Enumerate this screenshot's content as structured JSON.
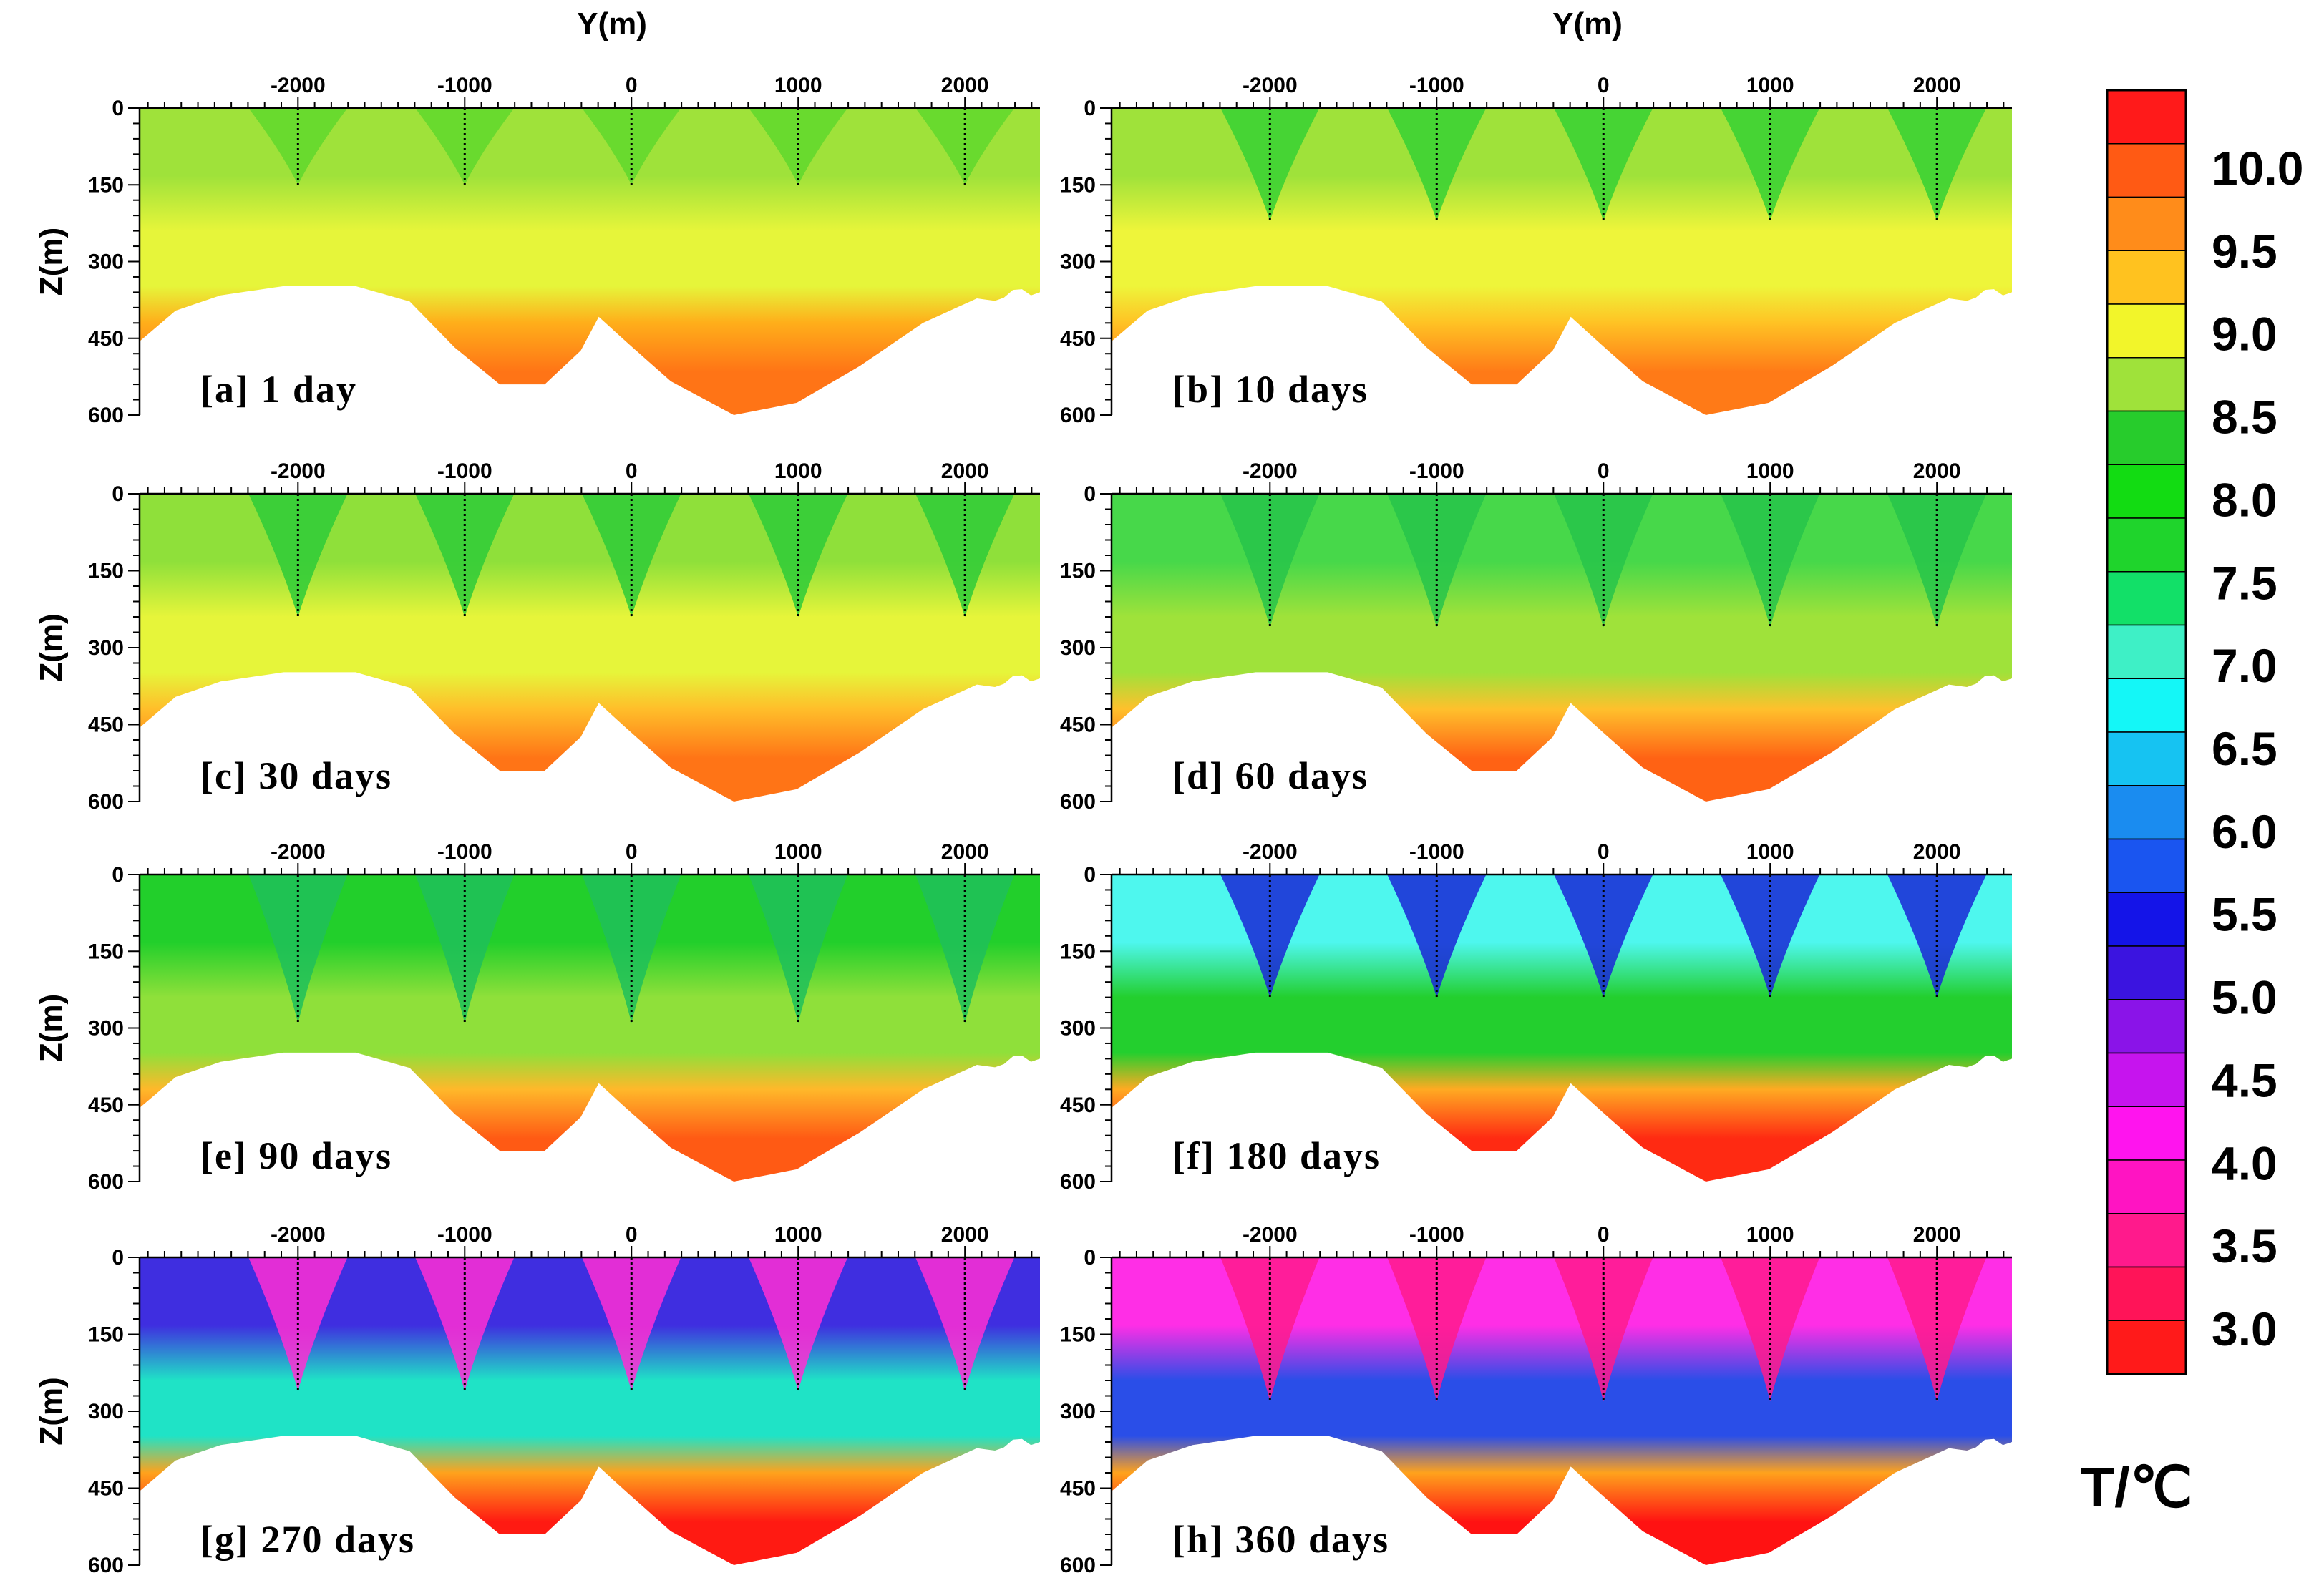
{
  "chart_data": {
    "type": "heatmap",
    "axes": {
      "x_title": "Y(m)",
      "y_title": "Z(m)"
    },
    "x_ticks": [
      "-2000",
      "-1000",
      "0",
      "1000",
      "2000"
    ],
    "x_tick_values": [
      -2000,
      -1000,
      0,
      1000,
      2000
    ],
    "y_ticks": [
      "0",
      "150",
      "300",
      "450",
      "600"
    ],
    "y_tick_values": [
      0,
      150,
      300,
      450,
      600
    ],
    "xlim": [
      -2950,
      2450
    ],
    "ylim": [
      0,
      600
    ],
    "wells_at_y": [
      -2000,
      -1000,
      0,
      1000,
      2000
    ],
    "panels": [
      {
        "label": "[a] 1 day",
        "surface": "#9fe23a",
        "upper": "#e6f53a",
        "deep": "#ffae1a",
        "bottom": "#ff7416",
        "well": "#5fd82d",
        "well_depth": 150
      },
      {
        "label": "[b] 10 days",
        "surface": "#9fe23a",
        "upper": "#eef53a",
        "deep": "#ffc224",
        "bottom": "#ff7a17",
        "well": "#36d134",
        "well_depth": 220
      },
      {
        "label": "[c] 30 days",
        "surface": "#8fe03a",
        "upper": "#e6f53a",
        "deep": "#ffbe2a",
        "bottom": "#ff7416",
        "well": "#2ecb38",
        "well_depth": 240
      },
      {
        "label": "[d] 60 days",
        "surface": "#47d84a",
        "upper": "#9fe23a",
        "deep": "#ffc02c",
        "bottom": "#ff6214",
        "well": "#27c44a",
        "well_depth": 260
      },
      {
        "label": "[e] 90 days",
        "surface": "#22cf2b",
        "upper": "#8fe03a",
        "deep": "#ffb82a",
        "bottom": "#ff5a14",
        "well": "#1fbf5a",
        "well_depth": 290
      },
      {
        "label": "[f] 180 days",
        "surface": "#4ef7ee",
        "upper": "#23cf2e",
        "deep": "#ffaa22",
        "bottom": "#ff2a12",
        "well": "#1a27d6",
        "well_depth": 240
      },
      {
        "label": "[g] 270 days",
        "surface": "#3f2ee0",
        "upper": "#1fe3c6",
        "deep": "#ffa21c",
        "bottom": "#ff1a12",
        "well": "#ff2ed4",
        "well_depth": 260
      },
      {
        "label": "[h] 360 days",
        "surface": "#ff2ee6",
        "upper": "#2a4ee8",
        "deep": "#ffa21c",
        "bottom": "#ff1212",
        "well": "#ff1a8c",
        "well_depth": 280
      }
    ],
    "colorbar": {
      "title": "T/℃",
      "labels": [
        "10.0",
        "9.5",
        "9.0",
        "8.5",
        "8.0",
        "7.5",
        "7.0",
        "6.5",
        "6.0",
        "5.5",
        "5.0",
        "4.5",
        "4.0",
        "3.5",
        "3.0"
      ],
      "colors": [
        "#ff1a1a",
        "#ff5a14",
        "#ff8c1a",
        "#ffc21f",
        "#f2f52a",
        "#9fe23a",
        "#27cc2c",
        "#12dc12",
        "#1fd42c",
        "#12e068",
        "#3ef0c6",
        "#14f7f7",
        "#16c3f2",
        "#1a8cf0",
        "#1a55f0",
        "#1414e8",
        "#3b14e0",
        "#8a14e8",
        "#c614ee",
        "#ff14ee",
        "#ff14c2",
        "#ff1a8c",
        "#ff1458",
        "#ff1a1a"
      ]
    }
  }
}
